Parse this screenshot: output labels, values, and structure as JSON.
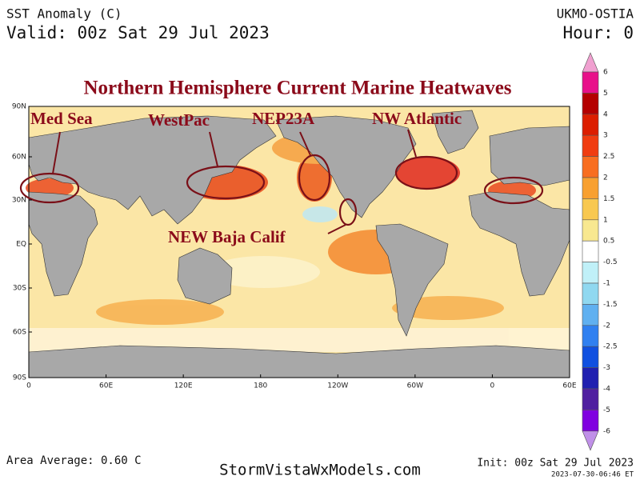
{
  "header": {
    "title": "SST Anomaly (C)",
    "valid": "Valid: 00z Sat 29 Jul 2023",
    "source": "UKMO-OSTIA",
    "hour": "Hour: 0"
  },
  "annotation": {
    "title": "Northern Hemisphere Current Marine Heatwaves",
    "regions": [
      "Med Sea",
      "WestPac",
      "NEP23A",
      "NW Atlantic",
      "NEW Baja Calif"
    ]
  },
  "map": {
    "lat_labels": [
      "90N",
      "60N",
      "30N",
      "EQ",
      "30S",
      "60S",
      "90S"
    ],
    "lon_labels": [
      "0",
      "60E",
      "120E",
      "180",
      "120W",
      "60W",
      "0",
      "60E"
    ]
  },
  "colorbar": {
    "labels": [
      "6",
      "5",
      "4",
      "3",
      "2.5",
      "2",
      "1.5",
      "1",
      "0.5",
      "-0.5",
      "-1",
      "-1.5",
      "-2",
      "-2.5",
      "-3",
      "-4",
      "-5",
      "-6"
    ]
  },
  "footer": {
    "area_average": "Area Average: 0.60 C",
    "site": "StormVistaWxModels.com",
    "init": "Init: 00z Sat 29 Jul 2023",
    "timestamp": "2023-07-30-06:46 ET"
  }
}
